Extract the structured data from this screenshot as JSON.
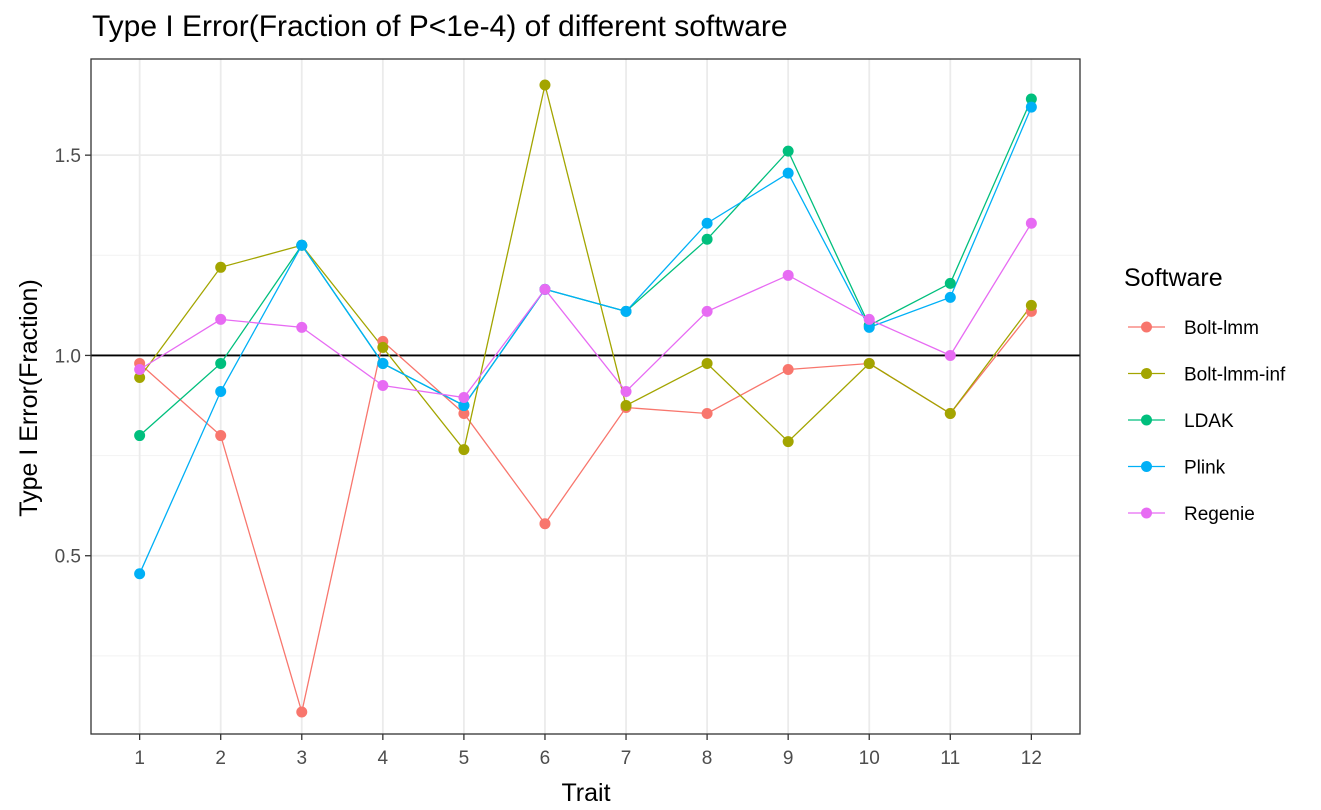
{
  "chart_data": {
    "type": "line",
    "title": "Type I Error(Fraction of P<1e-4) of different software",
    "xlabel": "Trait",
    "ylabel": "Type I Error(Fraction)",
    "x": [
      1,
      2,
      3,
      4,
      5,
      6,
      7,
      8,
      9,
      10,
      11,
      12
    ],
    "x_tick_labels": [
      "1",
      "2",
      "3",
      "4",
      "5",
      "6",
      "7",
      "8",
      "9",
      "10",
      "11",
      "12"
    ],
    "y_ticks": [
      0.5,
      1.0,
      1.5
    ],
    "y_tick_labels": [
      "0.5",
      "1.0",
      "1.5"
    ],
    "ylim": [
      0.055,
      1.74
    ],
    "xlim": [
      0.4,
      12.6
    ],
    "grid": true,
    "reference_line": 1.0,
    "legend": {
      "title": "Software",
      "position": "right"
    },
    "series": [
      {
        "name": "Bolt-lmm",
        "color": "#F8766D",
        "values": [
          0.98,
          0.8,
          0.11,
          1.035,
          0.855,
          0.58,
          0.87,
          0.855,
          0.965,
          0.98,
          0.855,
          1.11
        ]
      },
      {
        "name": "Bolt-lmm-inf",
        "color": "#A3A500",
        "values": [
          0.945,
          1.22,
          1.275,
          1.02,
          0.765,
          1.675,
          0.875,
          0.98,
          0.785,
          0.98,
          0.855,
          1.125
        ]
      },
      {
        "name": "LDAK",
        "color": "#00BF7D",
        "values": [
          0.8,
          0.98,
          1.275,
          0.98,
          0.875,
          1.165,
          1.11,
          1.29,
          1.51,
          1.075,
          1.18,
          1.64
        ]
      },
      {
        "name": "Plink",
        "color": "#00B0F6",
        "values": [
          0.455,
          0.91,
          1.275,
          0.98,
          0.875,
          1.165,
          1.11,
          1.33,
          1.455,
          1.07,
          1.145,
          1.62
        ]
      },
      {
        "name": "Regenie",
        "color": "#E76BF3",
        "values": [
          0.965,
          1.09,
          1.07,
          0.925,
          0.895,
          1.165,
          0.91,
          1.11,
          1.2,
          1.09,
          1.0,
          1.33
        ]
      }
    ]
  }
}
